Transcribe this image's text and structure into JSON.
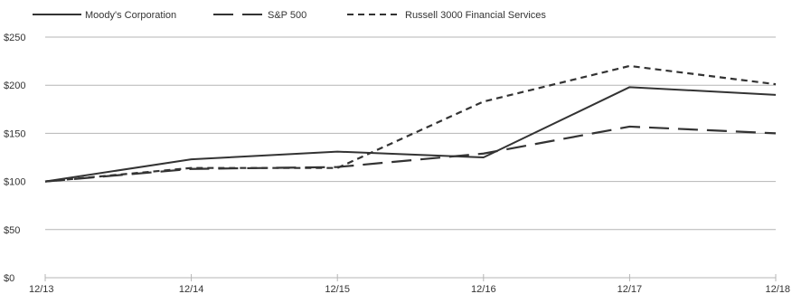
{
  "chart_data": {
    "type": "line",
    "categories": [
      "12/13",
      "12/14",
      "12/15",
      "12/16",
      "12/17",
      "12/18"
    ],
    "series": [
      {
        "name": "Moody's Corporation",
        "style": "solid",
        "color": "#333333",
        "values": [
          100,
          123,
          131,
          125,
          198,
          190
        ]
      },
      {
        "name": "S&P 500",
        "style": "long-dash",
        "color": "#333333",
        "values": [
          100,
          113,
          115,
          129,
          157,
          150
        ]
      },
      {
        "name": "Russell 3000 Financial Services",
        "style": "short-dash",
        "color": "#333333",
        "values": [
          100,
          114,
          114,
          183,
          220,
          201
        ]
      }
    ],
    "y_ticks": [
      "$0",
      "$50",
      "$100",
      "$150",
      "$200",
      "$250"
    ],
    "ylim": [
      0,
      250
    ],
    "grid": true,
    "legend_position": "top-left",
    "title": "",
    "xlabel": "",
    "ylabel": ""
  }
}
